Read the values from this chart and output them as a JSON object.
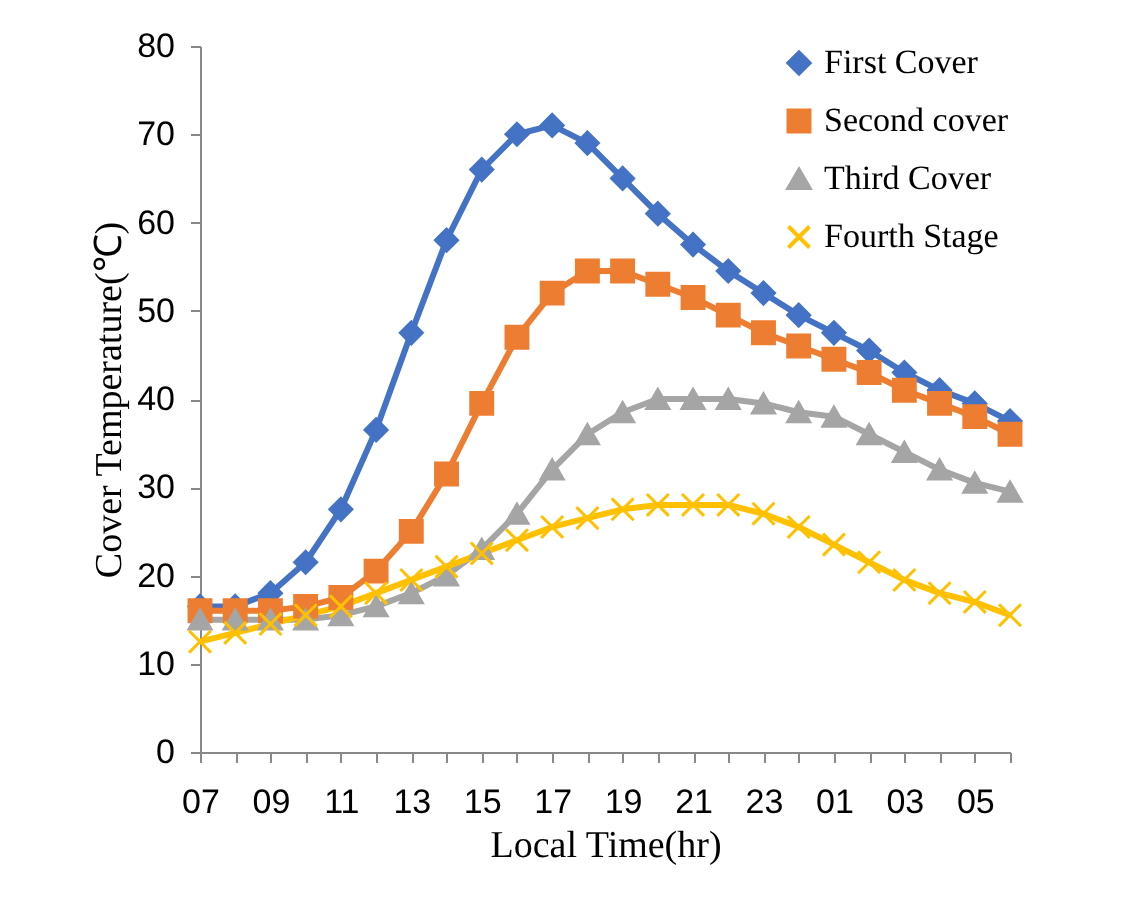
{
  "chart_data": {
    "type": "line",
    "xlabel": "Local Time(hr)",
    "ylabel": "Cover Temperature(℃)",
    "categories": [
      "07",
      null,
      "09",
      null,
      "11",
      null,
      "13",
      null,
      "15",
      null,
      "17",
      null,
      "19",
      null,
      "21",
      null,
      "23",
      null,
      "01",
      null,
      "03",
      null,
      "05",
      null
    ],
    "series": [
      {
        "name": "First Cover",
        "color": "#4472c4",
        "marker": "diamond",
        "values": [
          16.5,
          16.5,
          18,
          21.5,
          27.5,
          36.5,
          47.5,
          58,
          66,
          70,
          71,
          69,
          65,
          61,
          57.5,
          54.5,
          52,
          49.5,
          47.5,
          45.5,
          43,
          41,
          39.5,
          37.5
        ]
      },
      {
        "name": "Second cover",
        "color": "#ed7d31",
        "marker": "square",
        "values": [
          16,
          16,
          16,
          16.5,
          17.5,
          20.5,
          25,
          31.5,
          39.5,
          47,
          52,
          54.5,
          54.5,
          53,
          51.5,
          49.5,
          47.5,
          46,
          44.5,
          43,
          41,
          39.5,
          38,
          36
        ]
      },
      {
        "name": "Third Cover",
        "color": "#a5a5a5",
        "marker": "triangle",
        "values": [
          15,
          15,
          15,
          15,
          15.5,
          16.5,
          18,
          20,
          23,
          27,
          32,
          36,
          38.5,
          40,
          40,
          40,
          39.5,
          38.5,
          38,
          36,
          34,
          32,
          30.5,
          29.5
        ]
      },
      {
        "name": "Fourth Stage",
        "color": "#ffc000",
        "marker": "cross",
        "values": [
          12.5,
          13.5,
          14.5,
          15.5,
          16.5,
          18,
          19.5,
          21,
          22.5,
          24,
          25.5,
          26.5,
          27.5,
          28,
          28,
          28,
          27,
          25.5,
          23.5,
          21.5,
          19.5,
          18,
          17,
          15.5
        ]
      }
    ],
    "ylim": [
      0,
      80
    ],
    "yticks": [
      0,
      10,
      20,
      30,
      40,
      50,
      60,
      70,
      80
    ],
    "grid": false,
    "legend": "top right"
  }
}
